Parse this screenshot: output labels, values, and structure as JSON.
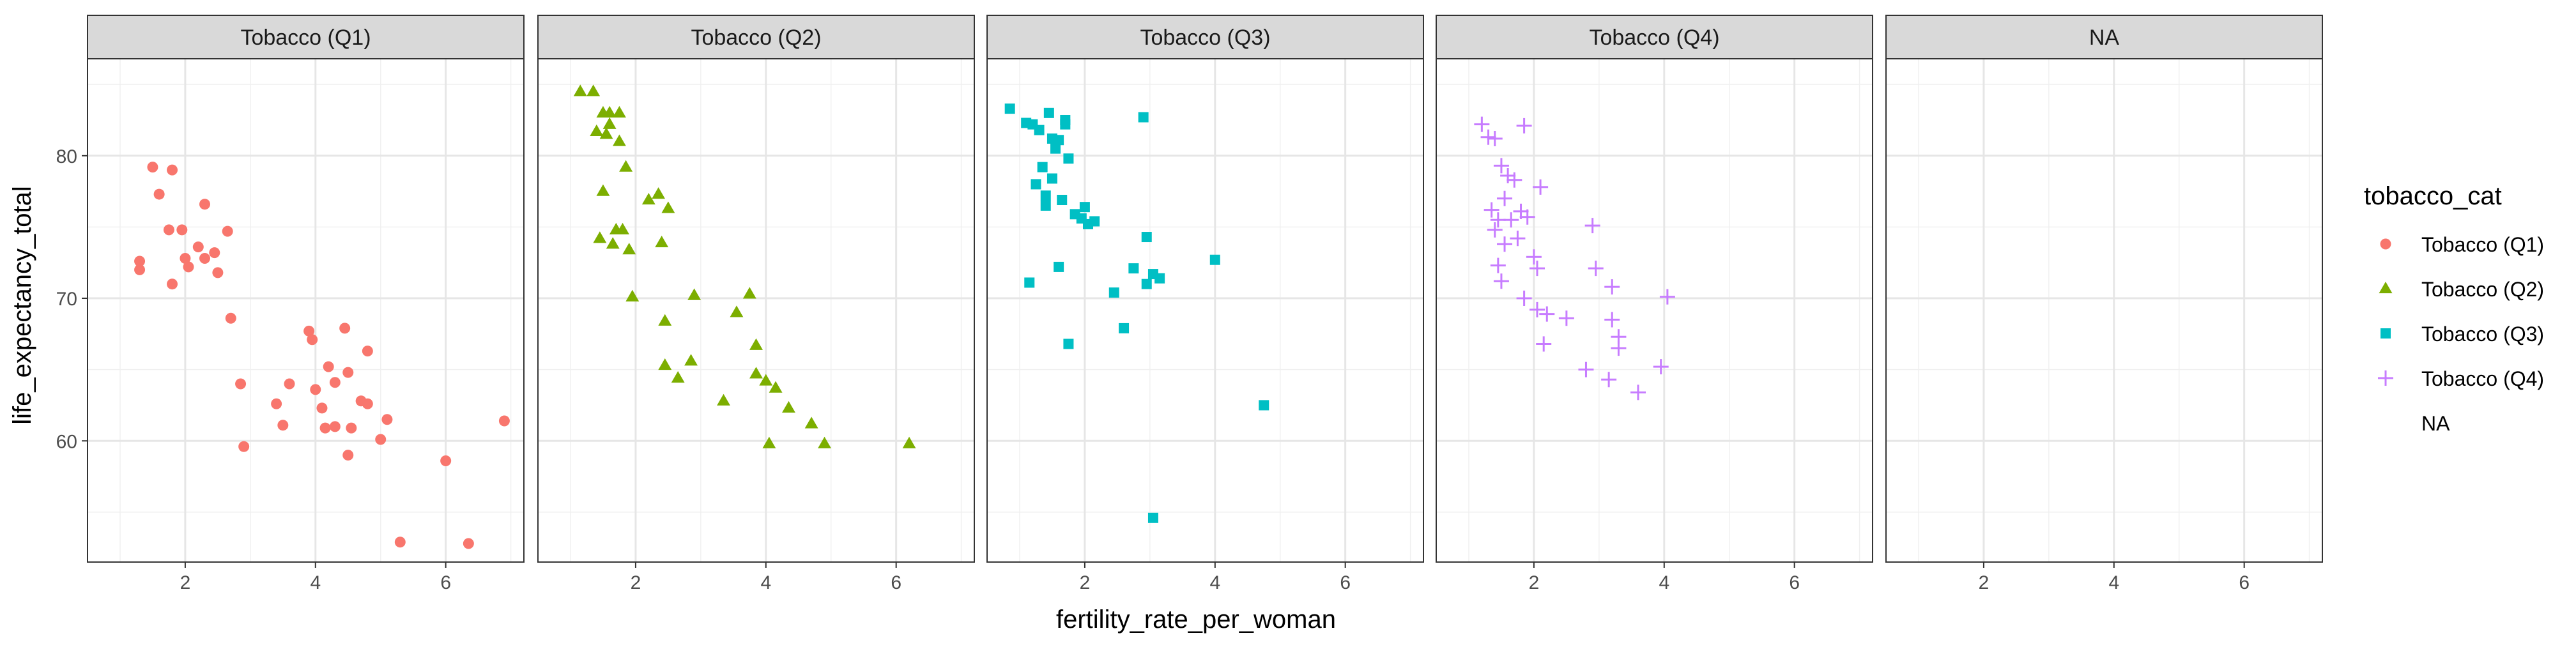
{
  "chart_data": {
    "type": "scatter",
    "layout": "faceted",
    "xlabel": "fertility_rate_per_woman",
    "ylabel": "life_expectancy_total",
    "xlim": [
      0.5,
      7.2
    ],
    "ylim": [
      51.5,
      86.8
    ],
    "x_ticks": [
      2,
      4,
      6
    ],
    "y_ticks": [
      60,
      70,
      80
    ],
    "grid": true,
    "legend": {
      "title": "tobacco_cat",
      "position": "right",
      "entries": [
        {
          "label": "Tobacco (Q1)",
          "color": "#F8766D",
          "shape": "circle"
        },
        {
          "label": "Tobacco (Q2)",
          "color": "#7CAE00",
          "shape": "triangle"
        },
        {
          "label": "Tobacco (Q3)",
          "color": "#00BFC4",
          "shape": "square"
        },
        {
          "label": "Tobacco (Q4)",
          "color": "#C77CFF",
          "shape": "plus"
        },
        {
          "label": "NA",
          "color": "",
          "shape": "none"
        }
      ]
    },
    "facets": [
      {
        "label": "Tobacco (Q1)",
        "color": "#F8766D",
        "shape": "circle",
        "points": [
          [
            1.3,
            72
          ],
          [
            1.3,
            72.6
          ],
          [
            1.5,
            79.2
          ],
          [
            1.6,
            77.3
          ],
          [
            1.75,
            74.8
          ],
          [
            1.8,
            79
          ],
          [
            1.8,
            71
          ],
          [
            1.95,
            74.8
          ],
          [
            2,
            72.8
          ],
          [
            2.05,
            72.2
          ],
          [
            2.2,
            73.6
          ],
          [
            2.3,
            76.6
          ],
          [
            2.3,
            72.8
          ],
          [
            2.45,
            73.2
          ],
          [
            2.5,
            71.8
          ],
          [
            2.65,
            74.7
          ],
          [
            2.7,
            68.6
          ],
          [
            2.85,
            64
          ],
          [
            2.9,
            59.6
          ],
          [
            3.4,
            62.6
          ],
          [
            3.5,
            61.1
          ],
          [
            3.6,
            64
          ],
          [
            3.9,
            67.7
          ],
          [
            3.95,
            67.1
          ],
          [
            4,
            63.6
          ],
          [
            4.1,
            62.3
          ],
          [
            4.15,
            60.9
          ],
          [
            4.2,
            65.2
          ],
          [
            4.3,
            61
          ],
          [
            4.3,
            64.1
          ],
          [
            4.45,
            67.9
          ],
          [
            4.5,
            59
          ],
          [
            4.5,
            64.8
          ],
          [
            4.55,
            60.9
          ],
          [
            4.7,
            62.8
          ],
          [
            4.8,
            62.6
          ],
          [
            4.8,
            66.3
          ],
          [
            5,
            60.1
          ],
          [
            5.1,
            61.5
          ],
          [
            5.3,
            52.9
          ],
          [
            6,
            58.6
          ],
          [
            6.35,
            52.8
          ],
          [
            6.9,
            61.4
          ]
        ]
      },
      {
        "label": "Tobacco (Q2)",
        "color": "#7CAE00",
        "shape": "triangle",
        "points": [
          [
            1.15,
            84.5
          ],
          [
            1.35,
            84.5
          ],
          [
            1.4,
            81.7
          ],
          [
            1.45,
            74.2
          ],
          [
            1.5,
            77.5
          ],
          [
            1.5,
            83
          ],
          [
            1.55,
            81.5
          ],
          [
            1.6,
            83
          ],
          [
            1.6,
            82.2
          ],
          [
            1.65,
            73.8
          ],
          [
            1.7,
            74.8
          ],
          [
            1.75,
            81
          ],
          [
            1.75,
            83
          ],
          [
            1.8,
            74.8
          ],
          [
            1.85,
            79.2
          ],
          [
            1.9,
            73.4
          ],
          [
            1.95,
            70.1
          ],
          [
            2.2,
            76.9
          ],
          [
            2.35,
            77.3
          ],
          [
            2.4,
            73.9
          ],
          [
            2.45,
            68.4
          ],
          [
            2.45,
            65.3
          ],
          [
            2.5,
            76.3
          ],
          [
            2.65,
            64.4
          ],
          [
            2.85,
            65.6
          ],
          [
            2.9,
            70.2
          ],
          [
            3.35,
            62.8
          ],
          [
            3.55,
            69
          ],
          [
            3.75,
            70.3
          ],
          [
            3.85,
            64.7
          ],
          [
            3.85,
            66.7
          ],
          [
            4,
            64.2
          ],
          [
            4.05,
            59.8
          ],
          [
            4.15,
            63.7
          ],
          [
            4.35,
            62.3
          ],
          [
            4.7,
            61.2
          ],
          [
            4.9,
            59.8
          ],
          [
            6.2,
            59.8
          ]
        ]
      },
      {
        "label": "Tobacco (Q3)",
        "color": "#00BFC4",
        "shape": "square",
        "points": [
          [
            0.85,
            83.3
          ],
          [
            1.1,
            82.3
          ],
          [
            1.15,
            71.1
          ],
          [
            1.2,
            82.2
          ],
          [
            1.25,
            78
          ],
          [
            1.3,
            81.8
          ],
          [
            1.35,
            79.2
          ],
          [
            1.4,
            76.5
          ],
          [
            1.4,
            77.2
          ],
          [
            1.45,
            83
          ],
          [
            1.5,
            78.4
          ],
          [
            1.5,
            81.2
          ],
          [
            1.55,
            80.5
          ],
          [
            1.6,
            72.2
          ],
          [
            1.6,
            81.1
          ],
          [
            1.65,
            76.9
          ],
          [
            1.7,
            82.5
          ],
          [
            1.7,
            82.2
          ],
          [
            1.75,
            79.8
          ],
          [
            1.75,
            66.8
          ],
          [
            1.85,
            75.9
          ],
          [
            1.95,
            75.6
          ],
          [
            2,
            76.4
          ],
          [
            2.05,
            75.2
          ],
          [
            2.15,
            75.4
          ],
          [
            2.45,
            70.4
          ],
          [
            2.6,
            67.9
          ],
          [
            2.75,
            72.1
          ],
          [
            2.9,
            82.7
          ],
          [
            2.95,
            71
          ],
          [
            2.95,
            74.3
          ],
          [
            3.05,
            71.7
          ],
          [
            3.05,
            54.6
          ],
          [
            3.15,
            71.4
          ],
          [
            4,
            72.7
          ],
          [
            4.75,
            62.5
          ]
        ]
      },
      {
        "label": "Tobacco (Q4)",
        "color": "#C77CFF",
        "shape": "plus",
        "points": [
          [
            1.2,
            82.2
          ],
          [
            1.3,
            81.3
          ],
          [
            1.35,
            76.2
          ],
          [
            1.4,
            81.2
          ],
          [
            1.4,
            74.8
          ],
          [
            1.45,
            72.3
          ],
          [
            1.45,
            75.5
          ],
          [
            1.5,
            71.2
          ],
          [
            1.5,
            79.3
          ],
          [
            1.55,
            77
          ],
          [
            1.55,
            73.8
          ],
          [
            1.6,
            78.6
          ],
          [
            1.65,
            75.5
          ],
          [
            1.7,
            78.3
          ],
          [
            1.75,
            74.2
          ],
          [
            1.8,
            76.1
          ],
          [
            1.85,
            82.1
          ],
          [
            1.85,
            70
          ],
          [
            1.9,
            75.7
          ],
          [
            2,
            72.9
          ],
          [
            2.05,
            72.1
          ],
          [
            2.05,
            69.2
          ],
          [
            2.1,
            77.8
          ],
          [
            2.15,
            66.8
          ],
          [
            2.2,
            68.9
          ],
          [
            2.5,
            68.6
          ],
          [
            2.8,
            65
          ],
          [
            2.9,
            75.1
          ],
          [
            2.95,
            72.1
          ],
          [
            3.15,
            64.3
          ],
          [
            3.2,
            68.5
          ],
          [
            3.2,
            70.8
          ],
          [
            3.3,
            66.5
          ],
          [
            3.3,
            67.3
          ],
          [
            3.6,
            63.4
          ],
          [
            3.95,
            65.2
          ],
          [
            4.05,
            70.1
          ]
        ]
      },
      {
        "label": "NA",
        "color": "",
        "shape": "none",
        "points": []
      }
    ]
  }
}
